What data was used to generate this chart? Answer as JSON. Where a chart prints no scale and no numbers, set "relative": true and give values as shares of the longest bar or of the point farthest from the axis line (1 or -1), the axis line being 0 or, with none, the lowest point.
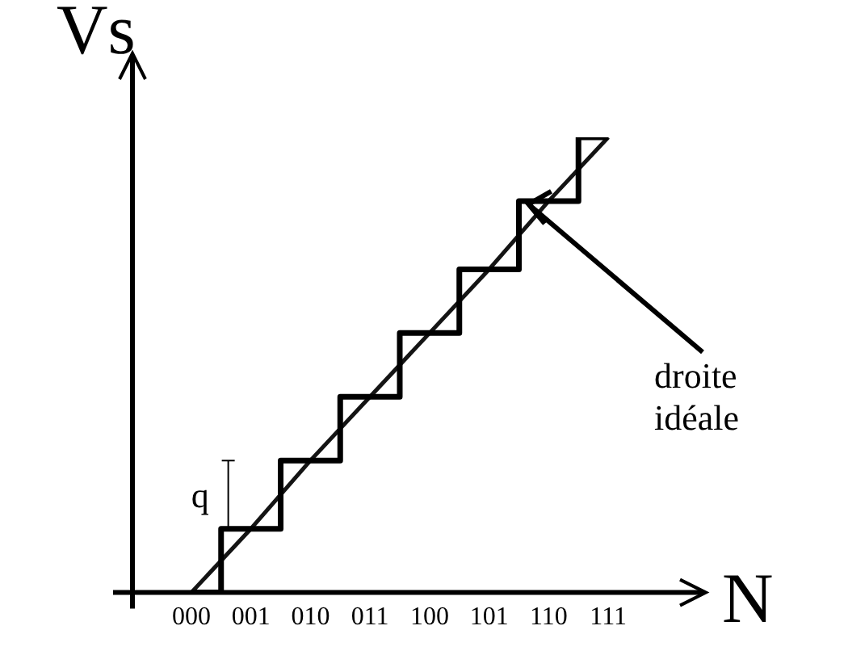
{
  "chart_data": {
    "type": "step",
    "relative": true,
    "xlabel": "N",
    "ylabel": "Vs",
    "categories": [
      "000",
      "001",
      "010",
      "011",
      "100",
      "101",
      "110",
      "111"
    ],
    "series": [
      {
        "color": "#000000",
        "values": [
          0,
          0.14,
          0.29,
          0.43,
          0.57,
          0.71,
          0.86,
          1
        ]
      },
      {
        "type": "line",
        "name": "droite idéale",
        "color": "#141414",
        "values": [
          0,
          0.14,
          0.29,
          0.43,
          0.57,
          0.71,
          0.86,
          1
        ]
      }
    ],
    "annotations": [
      "q"
    ],
    "grid": false,
    "legend": false,
    "marker": "none",
    "line_style": "solid"
  }
}
